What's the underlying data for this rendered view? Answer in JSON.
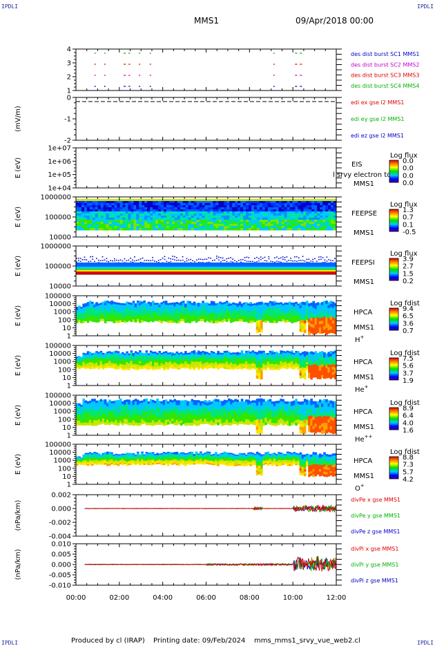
{
  "header": {
    "corner_label": "IPDLI",
    "spacecraft": "MMS1",
    "date": "09/Apr/2018 00:00"
  },
  "footer": {
    "produced_by": "Produced by cl (IRAP)",
    "printing_date": "Printing date: 09/Feb/2024",
    "filename": "mms_mms1_srvy_vue_web2.cl"
  },
  "colors": {
    "blue": "#0000c8",
    "green": "#00b400",
    "red": "#e00000",
    "magenta": "#c800c8",
    "axis": "#000000"
  },
  "chart_data": [
    {
      "id": "burst",
      "type": "scatter",
      "xlabel": "",
      "ylabel": "",
      "yticks": [
        "4",
        "3",
        "2",
        "1"
      ],
      "series": [
        {
          "name": "des dist burst SC1 MMS1",
          "color": "#0000c8",
          "y": 1,
          "segments_hours": [
            [
              0.85,
              0.9
            ],
            [
              1.3,
              1.33
            ],
            [
              2.2,
              2.5
            ],
            [
              2.9,
              2.95
            ],
            [
              3.4,
              3.45
            ],
            [
              9.1,
              9.14
            ],
            [
              10.1,
              10.5
            ]
          ]
        },
        {
          "name": "des dist burst SC2 MMS2",
          "color": "#c800c8",
          "y": 2,
          "segments_hours": [
            [
              0.85,
              0.9
            ],
            [
              1.3,
              1.33
            ],
            [
              2.2,
              2.5
            ],
            [
              2.9,
              2.95
            ],
            [
              3.4,
              3.45
            ],
            [
              9.1,
              9.14
            ],
            [
              10.1,
              10.5
            ]
          ]
        },
        {
          "name": "des dist burst SC3 MMS3",
          "color": "#e00000",
          "y": 3,
          "segments_hours": [
            [
              0.85,
              0.9
            ],
            [
              1.3,
              1.33
            ],
            [
              2.2,
              2.5
            ],
            [
              2.9,
              2.95
            ],
            [
              3.4,
              3.45
            ],
            [
              9.1,
              9.14
            ],
            [
              10.1,
              10.5
            ]
          ]
        },
        {
          "name": "des dist burst SC4 MMS4",
          "color": "#00b400",
          "y": 4,
          "segments_hours": [
            [
              0.85,
              0.9
            ],
            [
              1.3,
              1.33
            ],
            [
              2.2,
              2.5
            ],
            [
              2.9,
              2.95
            ],
            [
              3.4,
              3.45
            ],
            [
              9.1,
              9.14
            ],
            [
              10.1,
              10.5
            ]
          ]
        }
      ]
    },
    {
      "id": "efield",
      "type": "line",
      "ylabel": "(mV/m)",
      "yticks": [
        "0",
        "-1",
        "-2"
      ],
      "series": [
        {
          "name": "edi ex gse l2 MMS1",
          "color": "#e00000"
        },
        {
          "name": "edi ey gse l2 MMS1",
          "color": "#00b400"
        },
        {
          "name": "edi ez gse l2 MMS1",
          "color": "#0000c8"
        }
      ]
    },
    {
      "id": "eis",
      "type": "heatmap",
      "ylabel": "E (eV)",
      "yticks": [
        "1e+07",
        "1e+06",
        "1e+05",
        "1e+04"
      ],
      "instrument": "EIS",
      "spacecraft": "MMS1",
      "overlay_text": "l srvy electron to",
      "colorbar_title": "Log flux",
      "colorbar_ticks": [
        "0.0",
        "0.0",
        "0.0",
        "0.0"
      ]
    },
    {
      "id": "feepse",
      "type": "heatmap",
      "ylabel": "E (eV)",
      "yticks": [
        "1000000",
        "100000",
        "10000"
      ],
      "instrument": "FEEPSE",
      "spacecraft": "MMS1",
      "colorbar_title": "Log flux",
      "colorbar_ticks": [
        "1.3",
        "0.7",
        "0.1",
        "-0.5"
      ]
    },
    {
      "id": "feepsi",
      "type": "heatmap",
      "ylabel": "E (eV)",
      "yticks": [
        "1000000",
        "100000",
        "10000"
      ],
      "instrument": "FEEPSI",
      "spacecraft": "MMS1",
      "colorbar_title": "Log flux",
      "colorbar_ticks": [
        "3.9",
        "2.7",
        "1.5",
        "0.2"
      ]
    },
    {
      "id": "hpca_h",
      "type": "heatmap",
      "ylabel": "E (eV)",
      "yticks": [
        "100000",
        "10000",
        "1000",
        "100",
        "10",
        "1"
      ],
      "instrument": "HPCA",
      "spacecraft": "MMS1",
      "species": "H",
      "species_sup": "+",
      "colorbar_title": "Log fdist",
      "colorbar_ticks": [
        "9.4",
        "6.5",
        "3.6",
        "0.7"
      ]
    },
    {
      "id": "hpca_he",
      "type": "heatmap",
      "ylabel": "E (eV)",
      "yticks": [
        "100000",
        "10000",
        "1000",
        "100",
        "10",
        "1"
      ],
      "instrument": "HPCA",
      "spacecraft": "MMS1",
      "species": "He",
      "species_sup": "+",
      "colorbar_title": "Log fdist",
      "colorbar_ticks": [
        "7.5",
        "5.6",
        "3.7",
        "1.9"
      ]
    },
    {
      "id": "hpca_hepp",
      "type": "heatmap",
      "ylabel": "E (eV)",
      "yticks": [
        "100000",
        "10000",
        "1000",
        "100",
        "10",
        "1"
      ],
      "instrument": "HPCA",
      "spacecraft": "MMS1",
      "species": "He",
      "species_sup": "++",
      "colorbar_title": "Log fdist",
      "colorbar_ticks": [
        "8.9",
        "6.4",
        "4.0",
        "1.6"
      ]
    },
    {
      "id": "hpca_o",
      "type": "heatmap",
      "ylabel": "E (eV)",
      "yticks": [
        "100000",
        "10000",
        "1000",
        "100",
        "10",
        "1"
      ],
      "instrument": "HPCA",
      "spacecraft": "MMS1",
      "species": "O",
      "species_sup": "+",
      "colorbar_title": "Log fdist",
      "colorbar_ticks": [
        "8.8",
        "7.3",
        "5.7",
        "4.2"
      ]
    },
    {
      "id": "divpe",
      "type": "line",
      "ylabel": "(nPa/km)",
      "yticks": [
        "0.002",
        "0.000",
        "-0.002",
        "-0.004"
      ],
      "series": [
        {
          "name": "divPe x gse MMS1",
          "color": "#e00000"
        },
        {
          "name": "divPe y gse MMS1",
          "color": "#00b400"
        },
        {
          "name": "divPe z gse MMS1",
          "color": "#0000c8"
        }
      ]
    },
    {
      "id": "divpi",
      "type": "line",
      "ylabel": "(nPa/km)",
      "yticks": [
        "0.010",
        "0.005",
        "0.000",
        "-0.005",
        "-0.010"
      ],
      "series": [
        {
          "name": "divPi x gse MMS1",
          "color": "#e00000"
        },
        {
          "name": "divPi y gse MMS1",
          "color": "#00b400"
        },
        {
          "name": "divPi z gse MMS1",
          "color": "#0000c8"
        }
      ]
    }
  ],
  "time_axis": {
    "ticks": [
      "00:00",
      "02:00",
      "04:00",
      "06:00",
      "08:00",
      "10:00",
      "12:00"
    ],
    "range_hours": [
      0,
      12
    ]
  }
}
